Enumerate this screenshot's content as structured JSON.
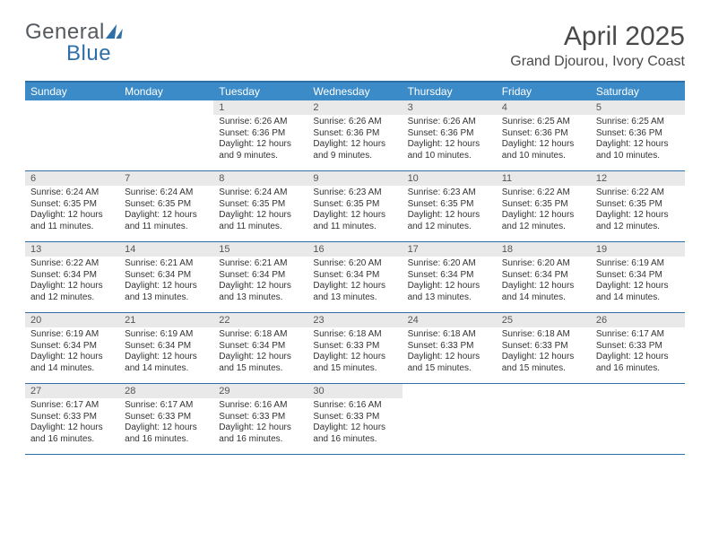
{
  "logo": {
    "text_left": "General",
    "text_right": "Blue"
  },
  "title": "April 2025",
  "location": "Grand Djourou, Ivory Coast",
  "day_labels": [
    "Sunday",
    "Monday",
    "Tuesday",
    "Wednesday",
    "Thursday",
    "Friday",
    "Saturday"
  ],
  "colors": {
    "header_bg": "#3b8bc8",
    "accent_border": "#2f6fa8",
    "daynum_bg": "#e9e9e9",
    "text": "#333333"
  },
  "weeks": [
    [
      {
        "day": "",
        "sunrise": "",
        "sunset": "",
        "daylight": ""
      },
      {
        "day": "",
        "sunrise": "",
        "sunset": "",
        "daylight": ""
      },
      {
        "day": "1",
        "sunrise": "Sunrise: 6:26 AM",
        "sunset": "Sunset: 6:36 PM",
        "daylight": "Daylight: 12 hours and 9 minutes."
      },
      {
        "day": "2",
        "sunrise": "Sunrise: 6:26 AM",
        "sunset": "Sunset: 6:36 PM",
        "daylight": "Daylight: 12 hours and 9 minutes."
      },
      {
        "day": "3",
        "sunrise": "Sunrise: 6:26 AM",
        "sunset": "Sunset: 6:36 PM",
        "daylight": "Daylight: 12 hours and 10 minutes."
      },
      {
        "day": "4",
        "sunrise": "Sunrise: 6:25 AM",
        "sunset": "Sunset: 6:36 PM",
        "daylight": "Daylight: 12 hours and 10 minutes."
      },
      {
        "day": "5",
        "sunrise": "Sunrise: 6:25 AM",
        "sunset": "Sunset: 6:36 PM",
        "daylight": "Daylight: 12 hours and 10 minutes."
      }
    ],
    [
      {
        "day": "6",
        "sunrise": "Sunrise: 6:24 AM",
        "sunset": "Sunset: 6:35 PM",
        "daylight": "Daylight: 12 hours and 11 minutes."
      },
      {
        "day": "7",
        "sunrise": "Sunrise: 6:24 AM",
        "sunset": "Sunset: 6:35 PM",
        "daylight": "Daylight: 12 hours and 11 minutes."
      },
      {
        "day": "8",
        "sunrise": "Sunrise: 6:24 AM",
        "sunset": "Sunset: 6:35 PM",
        "daylight": "Daylight: 12 hours and 11 minutes."
      },
      {
        "day": "9",
        "sunrise": "Sunrise: 6:23 AM",
        "sunset": "Sunset: 6:35 PM",
        "daylight": "Daylight: 12 hours and 11 minutes."
      },
      {
        "day": "10",
        "sunrise": "Sunrise: 6:23 AM",
        "sunset": "Sunset: 6:35 PM",
        "daylight": "Daylight: 12 hours and 12 minutes."
      },
      {
        "day": "11",
        "sunrise": "Sunrise: 6:22 AM",
        "sunset": "Sunset: 6:35 PM",
        "daylight": "Daylight: 12 hours and 12 minutes."
      },
      {
        "day": "12",
        "sunrise": "Sunrise: 6:22 AM",
        "sunset": "Sunset: 6:35 PM",
        "daylight": "Daylight: 12 hours and 12 minutes."
      }
    ],
    [
      {
        "day": "13",
        "sunrise": "Sunrise: 6:22 AM",
        "sunset": "Sunset: 6:34 PM",
        "daylight": "Daylight: 12 hours and 12 minutes."
      },
      {
        "day": "14",
        "sunrise": "Sunrise: 6:21 AM",
        "sunset": "Sunset: 6:34 PM",
        "daylight": "Daylight: 12 hours and 13 minutes."
      },
      {
        "day": "15",
        "sunrise": "Sunrise: 6:21 AM",
        "sunset": "Sunset: 6:34 PM",
        "daylight": "Daylight: 12 hours and 13 minutes."
      },
      {
        "day": "16",
        "sunrise": "Sunrise: 6:20 AM",
        "sunset": "Sunset: 6:34 PM",
        "daylight": "Daylight: 12 hours and 13 minutes."
      },
      {
        "day": "17",
        "sunrise": "Sunrise: 6:20 AM",
        "sunset": "Sunset: 6:34 PM",
        "daylight": "Daylight: 12 hours and 13 minutes."
      },
      {
        "day": "18",
        "sunrise": "Sunrise: 6:20 AM",
        "sunset": "Sunset: 6:34 PM",
        "daylight": "Daylight: 12 hours and 14 minutes."
      },
      {
        "day": "19",
        "sunrise": "Sunrise: 6:19 AM",
        "sunset": "Sunset: 6:34 PM",
        "daylight": "Daylight: 12 hours and 14 minutes."
      }
    ],
    [
      {
        "day": "20",
        "sunrise": "Sunrise: 6:19 AM",
        "sunset": "Sunset: 6:34 PM",
        "daylight": "Daylight: 12 hours and 14 minutes."
      },
      {
        "day": "21",
        "sunrise": "Sunrise: 6:19 AM",
        "sunset": "Sunset: 6:34 PM",
        "daylight": "Daylight: 12 hours and 14 minutes."
      },
      {
        "day": "22",
        "sunrise": "Sunrise: 6:18 AM",
        "sunset": "Sunset: 6:34 PM",
        "daylight": "Daylight: 12 hours and 15 minutes."
      },
      {
        "day": "23",
        "sunrise": "Sunrise: 6:18 AM",
        "sunset": "Sunset: 6:33 PM",
        "daylight": "Daylight: 12 hours and 15 minutes."
      },
      {
        "day": "24",
        "sunrise": "Sunrise: 6:18 AM",
        "sunset": "Sunset: 6:33 PM",
        "daylight": "Daylight: 12 hours and 15 minutes."
      },
      {
        "day": "25",
        "sunrise": "Sunrise: 6:18 AM",
        "sunset": "Sunset: 6:33 PM",
        "daylight": "Daylight: 12 hours and 15 minutes."
      },
      {
        "day": "26",
        "sunrise": "Sunrise: 6:17 AM",
        "sunset": "Sunset: 6:33 PM",
        "daylight": "Daylight: 12 hours and 16 minutes."
      }
    ],
    [
      {
        "day": "27",
        "sunrise": "Sunrise: 6:17 AM",
        "sunset": "Sunset: 6:33 PM",
        "daylight": "Daylight: 12 hours and 16 minutes."
      },
      {
        "day": "28",
        "sunrise": "Sunrise: 6:17 AM",
        "sunset": "Sunset: 6:33 PM",
        "daylight": "Daylight: 12 hours and 16 minutes."
      },
      {
        "day": "29",
        "sunrise": "Sunrise: 6:16 AM",
        "sunset": "Sunset: 6:33 PM",
        "daylight": "Daylight: 12 hours and 16 minutes."
      },
      {
        "day": "30",
        "sunrise": "Sunrise: 6:16 AM",
        "sunset": "Sunset: 6:33 PM",
        "daylight": "Daylight: 12 hours and 16 minutes."
      },
      {
        "day": "",
        "sunrise": "",
        "sunset": "",
        "daylight": ""
      },
      {
        "day": "",
        "sunrise": "",
        "sunset": "",
        "daylight": ""
      },
      {
        "day": "",
        "sunrise": "",
        "sunset": "",
        "daylight": ""
      }
    ]
  ]
}
